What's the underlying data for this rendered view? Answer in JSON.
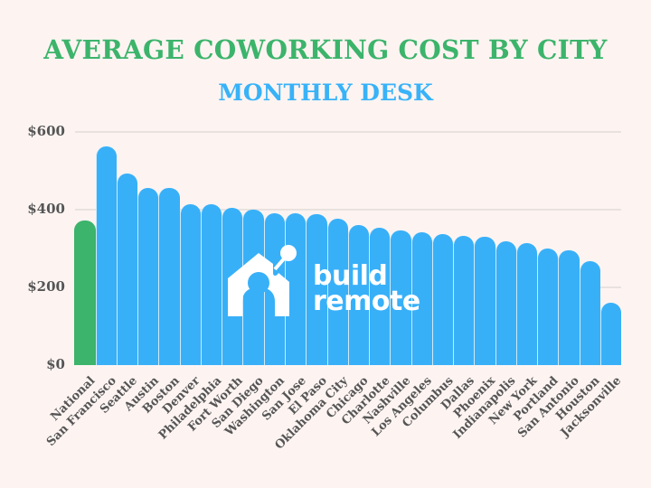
{
  "header": {
    "title": "AVERAGE COWORKING COST BY CITY",
    "subtitle": "MONTHLY DESK"
  },
  "colors": {
    "background": "#fdf4f2",
    "title": "#3cb46b",
    "subtitle": "#38b2f8",
    "national_bar": "#3cb46b",
    "city_bar": "#38b0f8",
    "axis_text": "#555555",
    "gridline": "#e8e2df"
  },
  "logo": {
    "icon": "house-robot-icon",
    "line1": "build",
    "line2": "remote"
  },
  "y_axis": {
    "ticks": [
      "$0",
      "$200",
      "$400",
      "$600"
    ]
  },
  "chart_data": {
    "type": "bar",
    "title": "AVERAGE COWORKING COST BY CITY",
    "subtitle": "MONTHLY DESK",
    "xlabel": "",
    "ylabel": "",
    "ylim": [
      0,
      600
    ],
    "yticks": [
      0,
      200,
      400,
      600
    ],
    "ytick_labels": [
      "$0",
      "$200",
      "$400",
      "$600"
    ],
    "grid": true,
    "legend": null,
    "categories": [
      "National",
      "San Francisco",
      "Seattle",
      "Austin",
      "Boston",
      "Denver",
      "Philadelphia",
      "Fort Worth",
      "San Diego",
      "Washington",
      "San Jose",
      "El Paso",
      "Oklahoma City",
      "Chicago",
      "Charlotte",
      "Nashville",
      "Los Angeles",
      "Columbus",
      "Dallas",
      "Phoenix",
      "Indianapolis",
      "New York",
      "Portland",
      "San Antonio",
      "Houston",
      "Jacksonville"
    ],
    "values": [
      371,
      562,
      492,
      455,
      455,
      415,
      415,
      405,
      400,
      391,
      391,
      388,
      376,
      360,
      353,
      347,
      343,
      337,
      332,
      330,
      318,
      313,
      301,
      296,
      268,
      161
    ],
    "highlight": {
      "National": "#3cb46b"
    },
    "default_color": "#38b0f8"
  }
}
